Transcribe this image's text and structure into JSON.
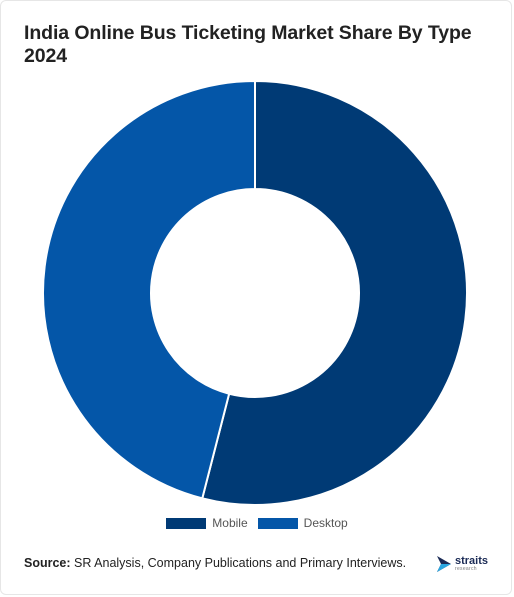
{
  "title": "India Online Bus Ticketing Market Share By Type 2024",
  "chart_data": {
    "type": "pie",
    "donut": true,
    "categories": [
      "Mobile",
      "Desktop"
    ],
    "values": [
      54,
      46
    ],
    "colors": [
      "#003a75",
      "#0456a8"
    ],
    "legend_position": "bottom"
  },
  "source": {
    "label": "Source:",
    "text": " SR Analysis, Company Publications and Primary Interviews."
  },
  "logo": {
    "word": "straits",
    "sub": "research"
  }
}
